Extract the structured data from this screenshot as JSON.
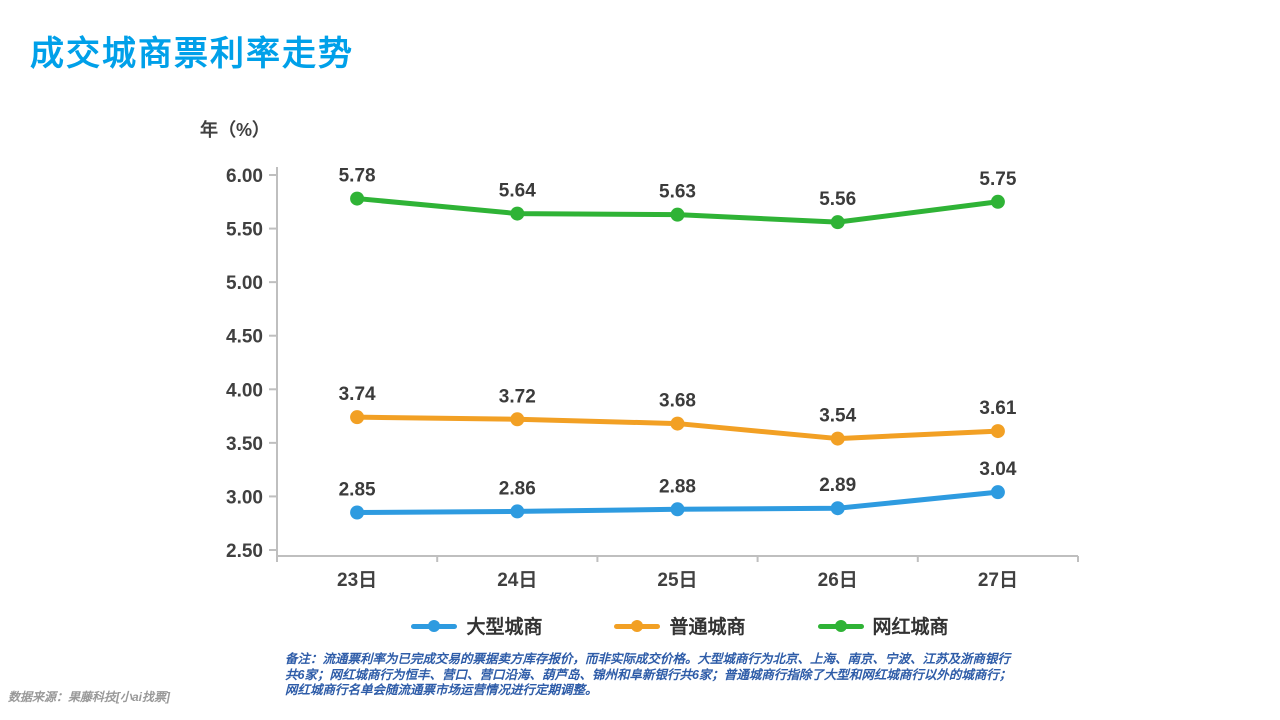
{
  "page": {
    "title": "成交城商票利率走势"
  },
  "colors": {
    "title_blue": "#00A0E9",
    "axis_gray": "#BFBFBF",
    "tick_text": "#404040",
    "note_blue": "#2E5CA8",
    "source_gray": "#999999"
  },
  "chart_data": {
    "type": "line",
    "title": "成交城商票利率走势",
    "xlabel": "",
    "ylabel": "年（%）",
    "categories": [
      "23日",
      "24日",
      "25日",
      "26日",
      "27日"
    ],
    "series": [
      {
        "name": "大型城商",
        "color": "#2E9BE0",
        "values": [
          2.85,
          2.86,
          2.88,
          2.89,
          3.04
        ]
      },
      {
        "name": "普通城商",
        "color": "#F2A024",
        "values": [
          3.74,
          3.72,
          3.68,
          3.54,
          3.61
        ]
      },
      {
        "name": "网红城商",
        "color": "#2FB336",
        "values": [
          5.78,
          5.64,
          5.63,
          5.56,
          5.75
        ]
      }
    ],
    "ylim": [
      2.5,
      6.0
    ],
    "yticks": [
      "6.00",
      "5.50",
      "5.00",
      "4.50",
      "4.00",
      "3.50",
      "3.00",
      "2.50"
    ],
    "grid": false,
    "legend_position": "bottom",
    "data_labels": true
  },
  "footer": {
    "note_lines": [
      "备注：流通票利率为已完成交易的票据卖方库存报价，而非实际成交价格。大型城商行为北京、上海、南京、宁波、江苏及浙商银行",
      "共6家；网红城商行为恒丰、营口、营口沿海、葫芦岛、锦州和阜新银行共6家；普通城商行指除了大型和网红城商行以外的城商行；",
      "网红城商行名单会随流通票市场运营情况进行定期调整。"
    ],
    "source": "数据来源：果藤科技[小ai找票]"
  }
}
